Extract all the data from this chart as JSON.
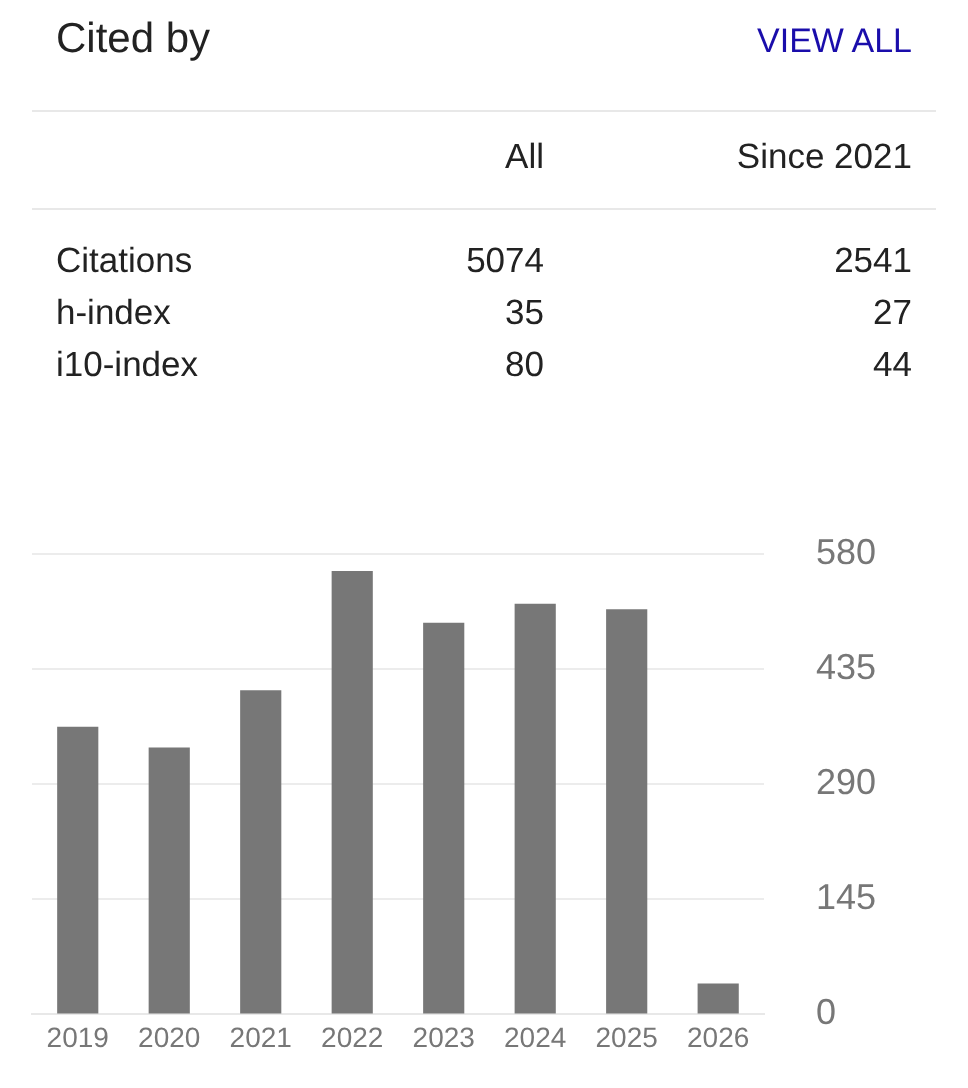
{
  "chart_data": [
    {
      "type": "other",
      "title": "Cited by",
      "annotations": [
        "VIEW ALL",
        "All",
        "Since 2021",
        "Citations",
        "5074",
        "2541",
        "h-index",
        "35",
        "27",
        "i10-index",
        "80",
        "44"
      ]
    },
    {
      "type": "bar",
      "categories": [
        "2019",
        "2020",
        "2021",
        "2022",
        "2023",
        "2024",
        "2025",
        "2026"
      ],
      "values": [
        362,
        336,
        408,
        558,
        493,
        517,
        510,
        39
      ],
      "color": "#777777",
      "ylim": [
        0,
        580
      ],
      "yticks": [
        0,
        145,
        290,
        435,
        580
      ],
      "grid": "y"
    }
  ]
}
